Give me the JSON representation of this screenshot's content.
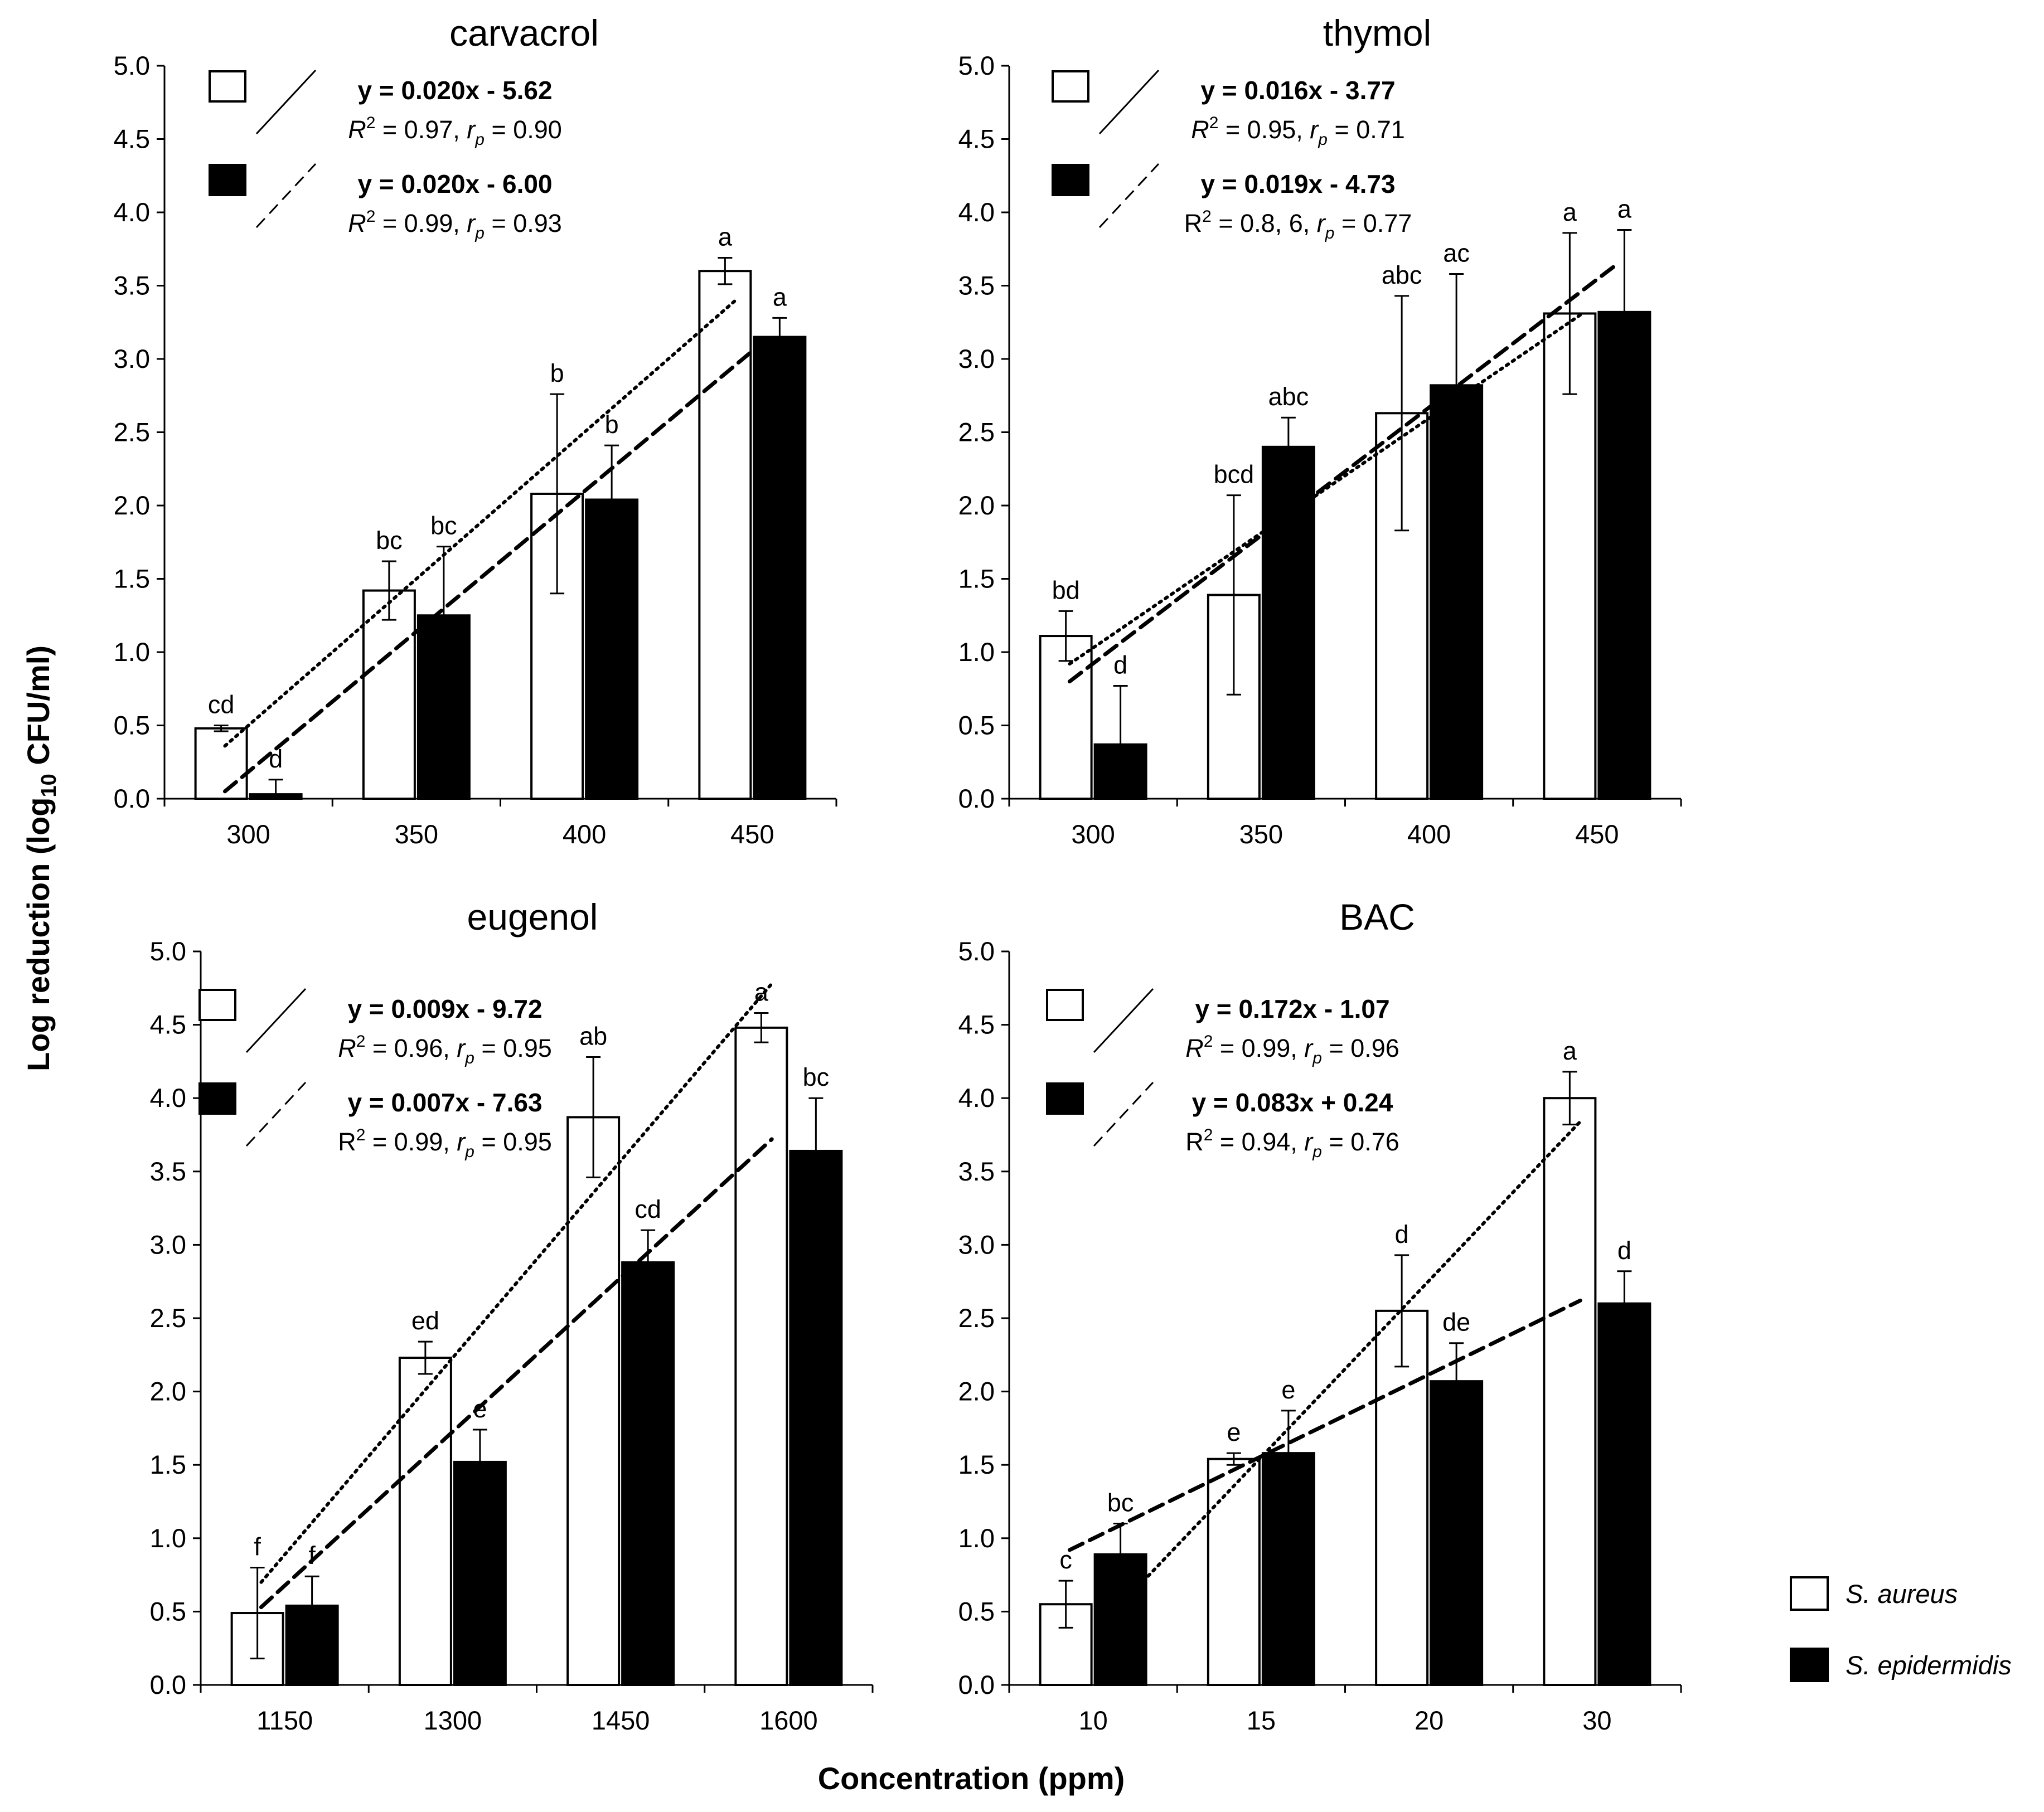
{
  "figure": {
    "ylabel_prefix": "Log reduction (log",
    "ylabel_sub": "10",
    "ylabel_suffix": " CFU/ml)",
    "xlabel": "Concentration (ppm)"
  },
  "legend": {
    "items": [
      {
        "label": "S. aureus",
        "fill": "#ffffff"
      },
      {
        "label": "S. epidermidis",
        "fill": "#000000"
      }
    ]
  },
  "chart_data": [
    {
      "type": "bar",
      "title": "carvacrol",
      "categories": [
        "300",
        "350",
        "400",
        "450"
      ],
      "ylim": [
        0,
        5
      ],
      "yticks": [
        "0.0",
        "0.5",
        "1.0",
        "1.5",
        "2.0",
        "2.5",
        "3.0",
        "3.5",
        "4.0",
        "4.5",
        "5.0"
      ],
      "series": [
        {
          "name": "S. aureus",
          "values": [
            0.48,
            1.42,
            2.08,
            3.6
          ],
          "errors": [
            0.02,
            0.2,
            0.68,
            0.09
          ],
          "letters": [
            "cd",
            "bc",
            "b",
            "a"
          ]
        },
        {
          "name": "S. epidermidis",
          "values": [
            0.03,
            1.25,
            2.04,
            3.15
          ],
          "errors": [
            0.1,
            0.47,
            0.37,
            0.13
          ],
          "letters": [
            "d",
            "bc",
            "b",
            "a"
          ]
        }
      ],
      "trendlines": [
        {
          "series": "S. aureus",
          "style": "dotted",
          "from": [
            0.36,
            0.36
          ],
          "to": [
            3.4,
            3.4
          ]
        },
        {
          "series": "S. epidermidis",
          "style": "dashed",
          "from": [
            0.36,
            0.05
          ],
          "to": [
            3.6,
            3.15
          ]
        }
      ],
      "equations": [
        {
          "eq": "y = 0.020x - 5.62",
          "r2": "0.97",
          "rp": "0.90",
          "r2_italic": true
        },
        {
          "eq": "y = 0.020x - 6.00",
          "r2": "0.99",
          "rp": "0.93",
          "r2_italic": true
        }
      ]
    },
    {
      "type": "bar",
      "title": "thymol",
      "categories": [
        "300",
        "350",
        "400",
        "450"
      ],
      "ylim": [
        0,
        5
      ],
      "yticks": [
        "0.0",
        "0.5",
        "1.0",
        "1.5",
        "2.0",
        "2.5",
        "3.0",
        "3.5",
        "4.0",
        "4.5",
        "5.0"
      ],
      "series": [
        {
          "name": "S. aureus",
          "values": [
            1.11,
            1.39,
            2.63,
            3.31
          ],
          "errors": [
            0.17,
            0.68,
            0.8,
            0.55
          ],
          "letters": [
            "bd",
            "bcd",
            "abc",
            "a"
          ]
        },
        {
          "name": "S. epidermidis",
          "values": [
            0.37,
            2.4,
            2.82,
            3.32
          ],
          "errors": [
            0.4,
            0.2,
            0.76,
            0.56
          ],
          "letters": [
            "d",
            "abc",
            "ac",
            "a"
          ]
        }
      ],
      "trendlines": [
        {
          "series": "S. aureus",
          "style": "dotted",
          "from": [
            0.36,
            0.92
          ],
          "to": [
            3.4,
            3.3
          ]
        },
        {
          "series": "S. epidermidis",
          "style": "dashed",
          "from": [
            0.36,
            0.8
          ],
          "to": [
            3.6,
            3.63
          ]
        }
      ],
      "equations": [
        {
          "eq": "y = 0.016x - 3.77",
          "r2": "0.95",
          "rp": "0.71",
          "r2_italic": true
        },
        {
          "eq": "y = 0.019x - 4.73",
          "r2": "0.8, 6",
          "rp": "0.77",
          "r2_italic": false
        }
      ]
    },
    {
      "type": "bar",
      "title": "eugenol",
      "categories": [
        "1150",
        "1300",
        "1450",
        "1600"
      ],
      "ylim": [
        0,
        5
      ],
      "yticks": [
        "0.0",
        "0.5",
        "1.0",
        "1.5",
        "2.0",
        "2.5",
        "3.0",
        "3.5",
        "4.0",
        "4.5",
        "5.0"
      ],
      "series": [
        {
          "name": "S. aureus",
          "values": [
            0.49,
            2.23,
            3.87,
            4.48
          ],
          "errors": [
            0.31,
            0.11,
            0.41,
            0.1
          ],
          "letters": [
            "f",
            "ed",
            "ab",
            "a"
          ]
        },
        {
          "name": "S. epidermidis",
          "values": [
            0.54,
            1.52,
            2.88,
            3.64
          ],
          "errors": [
            0.2,
            0.22,
            0.22,
            0.36
          ],
          "letters": [
            "f",
            "e",
            "cd",
            "bc"
          ]
        }
      ],
      "trendlines": [
        {
          "series": "S. aureus",
          "style": "dotted",
          "from": [
            0.36,
            0.7
          ],
          "to": [
            3.4,
            4.78
          ]
        },
        {
          "series": "S. epidermidis",
          "style": "dashed",
          "from": [
            0.36,
            0.53
          ],
          "to": [
            3.4,
            3.72
          ]
        }
      ],
      "equations": [
        {
          "eq": "y = 0.009x - 9.72",
          "r2": "0.96",
          "rp": "0.95",
          "r2_italic": true
        },
        {
          "eq": "y = 0.007x - 7.63",
          "r2": "0.99",
          "rp": "0.95",
          "r2_italic": false
        }
      ]
    },
    {
      "type": "bar",
      "title": "BAC",
      "categories": [
        "10",
        "15",
        "20",
        "30"
      ],
      "ylim": [
        0,
        5
      ],
      "yticks": [
        "0.0",
        "0.5",
        "1.0",
        "1.5",
        "2.0",
        "2.5",
        "3.0",
        "3.5",
        "4.0",
        "4.5",
        "5.0"
      ],
      "series": [
        {
          "name": "S. aureus",
          "values": [
            0.55,
            1.54,
            2.55,
            4.0
          ],
          "errors": [
            0.16,
            0.04,
            0.38,
            0.18
          ],
          "letters": [
            "c",
            "e",
            "d",
            "a"
          ]
        },
        {
          "name": "S. epidermidis",
          "values": [
            0.89,
            1.58,
            2.07,
            2.6
          ],
          "errors": [
            0.21,
            0.29,
            0.26,
            0.22
          ],
          "letters": [
            "bc",
            "e",
            "de",
            "d"
          ]
        }
      ],
      "trendlines": [
        {
          "series": "S. aureus",
          "style": "dotted",
          "from": [
            0.56,
            0.42
          ],
          "to": [
            3.4,
            3.84
          ]
        },
        {
          "series": "S. epidermidis",
          "style": "dashed",
          "from": [
            0.36,
            0.92
          ],
          "to": [
            3.4,
            2.62
          ]
        }
      ],
      "equations": [
        {
          "eq": "y = 0.172x - 1.07",
          "r2": "0.99",
          "rp": "0.96",
          "r2_italic": true
        },
        {
          "eq": "y = 0.083x + 0.24",
          "r2": "0.94",
          "rp": "0.76",
          "r2_italic": false
        }
      ]
    }
  ]
}
